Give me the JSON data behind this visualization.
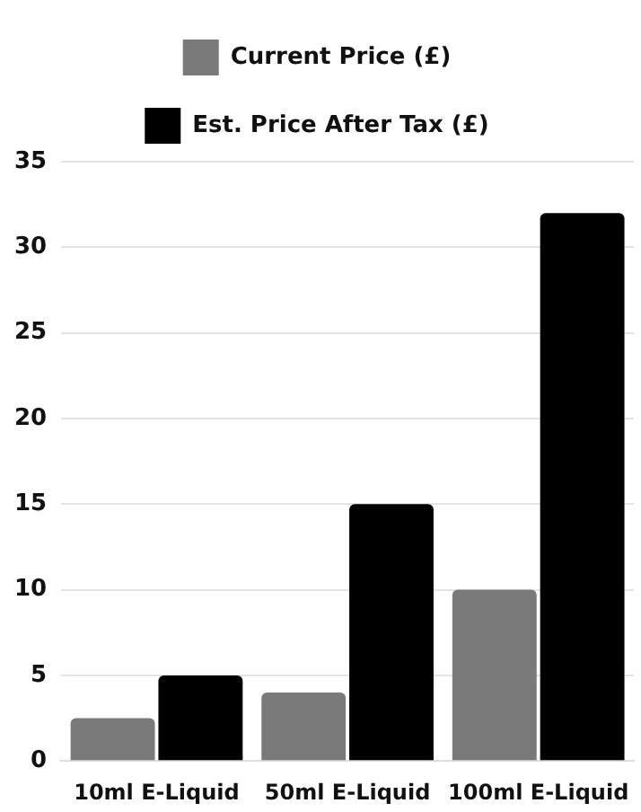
{
  "chart_data": {
    "type": "bar",
    "categories": [
      "10ml E-Liquid",
      "50ml E-Liquid",
      "100ml E-Liquid"
    ],
    "series": [
      {
        "name": "Current Price (£)",
        "color": "#7a7a7a",
        "values": [
          2.5,
          4,
          10
        ]
      },
      {
        "name": "Est. Price After Tax (£)",
        "color": "#000000",
        "values": [
          5,
          15,
          32
        ]
      }
    ],
    "ylim": [
      0,
      35
    ],
    "yticks": [
      0,
      5,
      10,
      15,
      20,
      25,
      30,
      35
    ],
    "grid": "y",
    "legend": "top"
  }
}
